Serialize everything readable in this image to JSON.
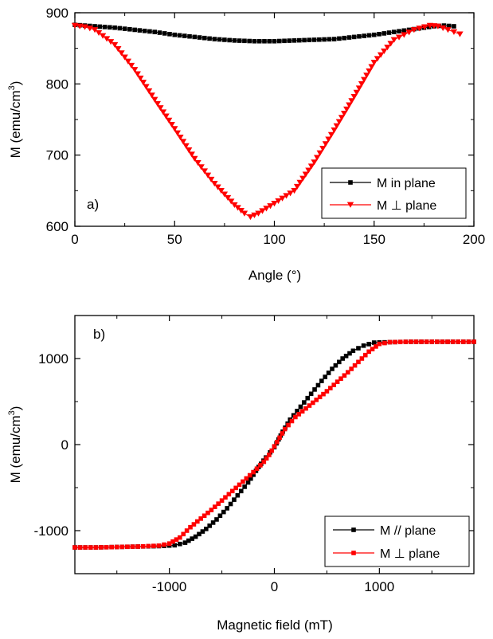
{
  "chart_data": [
    {
      "type": "scatter",
      "panel_label": "a)",
      "xlabel": "Angle (°)",
      "ylabel_main": "M (emu/cm",
      "ylabel_sup": "3",
      "ylabel_close": ")",
      "xlim": [
        0,
        200
      ],
      "ylim": [
        600,
        900
      ],
      "xticks": [
        0,
        50,
        100,
        150,
        200
      ],
      "yticks": [
        600,
        700,
        800,
        900
      ],
      "xtick_labels": [
        "0",
        "50",
        "100",
        "150",
        "200"
      ],
      "ytick_labels": [
        "600",
        "700",
        "800",
        "900"
      ],
      "legend_position": "bottom-right",
      "series": [
        {
          "name": "M in plane",
          "color": "#000000",
          "marker": "square",
          "x": [
            0,
            10,
            20,
            30,
            40,
            50,
            60,
            70,
            80,
            90,
            100,
            110,
            120,
            130,
            140,
            150,
            160,
            170,
            180,
            185,
            190
          ],
          "y": [
            883,
            881,
            879,
            876,
            873,
            869,
            866,
            863,
            861,
            860,
            860,
            861,
            862,
            863,
            866,
            869,
            873,
            877,
            881,
            882,
            881
          ]
        },
        {
          "name": "M ⊥ plane",
          "color": "#ff0000",
          "marker": "triangle-down",
          "x": [
            0,
            5,
            10,
            20,
            30,
            40,
            50,
            60,
            70,
            80,
            85,
            88,
            92,
            100,
            110,
            120,
            130,
            140,
            150,
            160,
            170,
            178,
            182,
            187,
            193
          ],
          "y": [
            882,
            880,
            876,
            855,
            820,
            778,
            737,
            695,
            660,
            630,
            618,
            613,
            618,
            632,
            650,
            690,
            735,
            782,
            830,
            862,
            876,
            882,
            881,
            876,
            870
          ]
        }
      ]
    },
    {
      "type": "scatter",
      "panel_label": "b)",
      "xlabel": "Magnetic field (mT)",
      "ylabel_main": "M (emu/cm",
      "ylabel_sup": "3",
      "ylabel_close": ")",
      "xlim": [
        -1900,
        1900
      ],
      "ylim": [
        -1500,
        1500
      ],
      "xticks": [
        -1000,
        0,
        1000
      ],
      "yticks": [
        -1000,
        0,
        1000
      ],
      "xtick_labels": [
        "-1000",
        "0",
        "1000"
      ],
      "ytick_labels": [
        "-1000",
        "0",
        "1000"
      ],
      "legend_position": "bottom-right",
      "series": [
        {
          "name": "M // plane",
          "color": "#000000",
          "marker": "square",
          "x": [
            -1900,
            -1700,
            -1500,
            -1300,
            -1100,
            -950,
            -850,
            -750,
            -650,
            -550,
            -450,
            -350,
            -250,
            -150,
            -80,
            -40,
            0,
            40,
            80,
            150,
            250,
            350,
            450,
            550,
            650,
            750,
            850,
            950,
            1100,
            1300,
            1500,
            1700,
            1900
          ],
          "y": [
            -1195,
            -1195,
            -1190,
            -1185,
            -1180,
            -1170,
            -1140,
            -1070,
            -980,
            -870,
            -740,
            -590,
            -440,
            -260,
            -150,
            -90,
            -30,
            60,
            150,
            290,
            440,
            590,
            740,
            880,
            1000,
            1090,
            1150,
            1185,
            1190,
            1195,
            1195,
            1195,
            1195
          ]
        },
        {
          "name": "M ⊥ plane",
          "color": "#ff0000",
          "marker": "square",
          "x": [
            -1900,
            -1700,
            -1500,
            -1300,
            -1100,
            -1000,
            -900,
            -800,
            -700,
            -600,
            -500,
            -400,
            -300,
            -200,
            -100,
            -50,
            0,
            50,
            100,
            200,
            300,
            400,
            500,
            600,
            700,
            800,
            900,
            1000,
            1100,
            1300,
            1500,
            1700,
            1900
          ],
          "y": [
            -1195,
            -1195,
            -1190,
            -1185,
            -1175,
            -1150,
            -1080,
            -960,
            -860,
            -760,
            -650,
            -540,
            -430,
            -320,
            -200,
            -120,
            -20,
            80,
            180,
            320,
            420,
            520,
            620,
            730,
            840,
            960,
            1080,
            1170,
            1190,
            1195,
            1195,
            1195,
            1195
          ]
        }
      ]
    }
  ]
}
